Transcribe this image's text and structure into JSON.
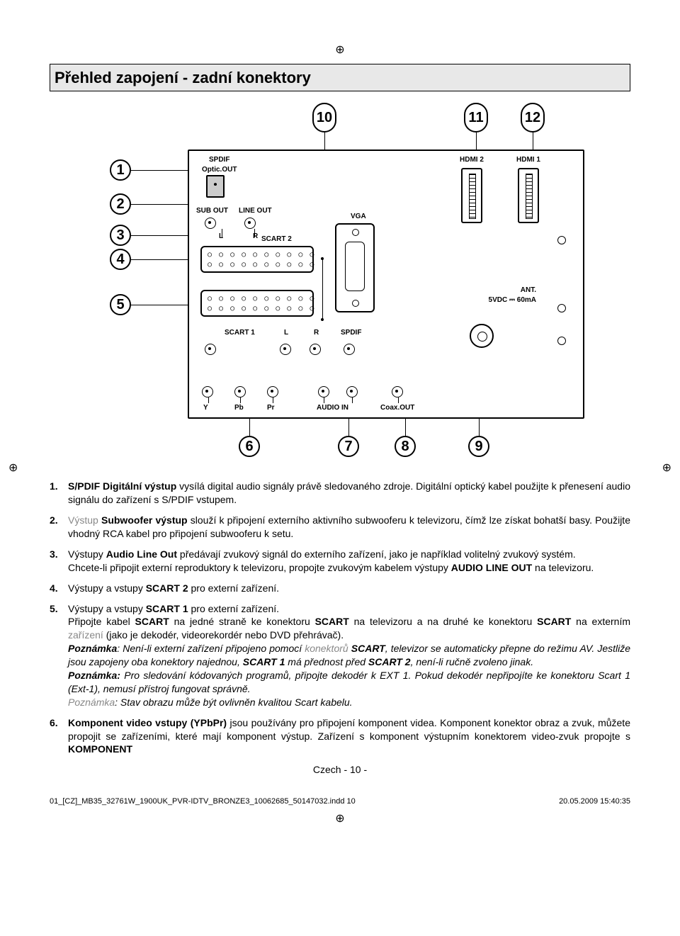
{
  "title": "Přehled zapojení - zadní konektory",
  "registration_mark": "⊕",
  "diagram": {
    "callout_bubbles": {
      "left": [
        "1",
        "2",
        "3",
        "4",
        "5"
      ],
      "top": [
        "10",
        "11",
        "12"
      ],
      "bottom": [
        "6",
        "7",
        "8",
        "9"
      ]
    },
    "labels": {
      "spdif_optic": "SPDIF\nOptic.OUT",
      "sub_out": "SUB OUT",
      "line_out": "LINE OUT",
      "L": "L",
      "R": "R",
      "scart2": "SCART 2",
      "scart1": "SCART 1",
      "vga": "VGA",
      "hdmi2": "HDMI 2",
      "hdmi1": "HDMI 1",
      "ant": "ANT.\n5VDC ⎓ 60mA",
      "spdif": "SPDIF",
      "audio_in": "AUDIO IN",
      "coax_out": "Coax.OUT",
      "y": "Y",
      "pb": "Pb",
      "pr": "Pr"
    }
  },
  "items": [
    {
      "n": "1.",
      "html": "<span class='b'>S/PDIF Digitální výstup</span> vysílá digital audio signály právě sledovaného zdroje. Digitální optický kabel použijte k přenesení audio signálu do zařízení s S/PDIF vstupem."
    },
    {
      "n": "2.",
      "html": "<span class='gray'>Výstup</span> <span class='b'>Subwoofer výstup</span>  slouží k připojení externího aktivního subwooferu k televizoru, čímž lze získat bohatší basy. Použijte vhodný RCA kabel pro připojení subwooferu k setu."
    },
    {
      "n": "3.",
      "html": "Výstupy <span class='b'>Audio Line Out</span> předávají zvukový signál do externího zařízení, jako je například volitelný zvukový systém.<br>Chcete-li připojit externí reproduktory k televizoru, propojte zvukovým kabelem výstupy <span class='b'>AUDIO LINE OUT</span> na televizoru."
    },
    {
      "n": "4.",
      "html": "Výstupy a vstupy <span class='b'>SCART 2</span> pro externí zařízení."
    },
    {
      "n": "5.",
      "html": "Výstupy a vstupy <span class='b'>SCART 1</span> pro externí zařízení.<br>Připojte kabel <span class='b'>SCART</span> na jedné straně ke konektoru <span class='b'>SCART</span> na televizoru a na druhé ke konektoru <span class='b'>SCART</span> na externím <span class='gray'>zařízení</span> (jako je dekodér, videorekordér nebo DVD přehrávač).<br><span class='i'><span class='b'>Poznámka</span>: Není-li externí zařízení připojeno pomocí <span class='gray'>konektorů</span> <span class='b'>SCART</span>, televizor se automaticky přepne do režimu AV. Jestliže jsou zapojeny oba konektory najednou, <span class='b'>SCART 1</span> má přednost před <span class='b'>SCART 2</span>, není-li ručně zvoleno jinak.</span><br><span class='i'><span class='b'>Poznámka:</span> Pro sledování kódovaných programů, připojte dekodér k EXT 1. Pokud dekodér nepřipojíte ke konektoru Scart 1 (Ext-1), nemusí přístroj fungovat správně.</span><br><span class='i'><span class='gray'>Poznámka</span>: Stav obrazu může být ovlivněn kvalitou Scart kabelu.</span>"
    },
    {
      "n": "6.",
      "html": "<span class='b'>Komponent video vstupy (YPbPr)</span> jsou používány pro připojení komponent videa. Komponent konektor obraz a zvuk, můžete propojit se zařízeními, které mají komponent výstup. Zařízení s komponent výstupním konektorem video-zvuk propojte s <span class='b'>KOMPONENT</span>"
    }
  ],
  "footer_center": "Czech   - 10 -",
  "footer_left": "01_[CZ]_MB35_32761W_1900UK_PVR-IDTV_BRONZE3_10062685_50147032.indd   10",
  "footer_right": "20.05.2009   15:40:35"
}
